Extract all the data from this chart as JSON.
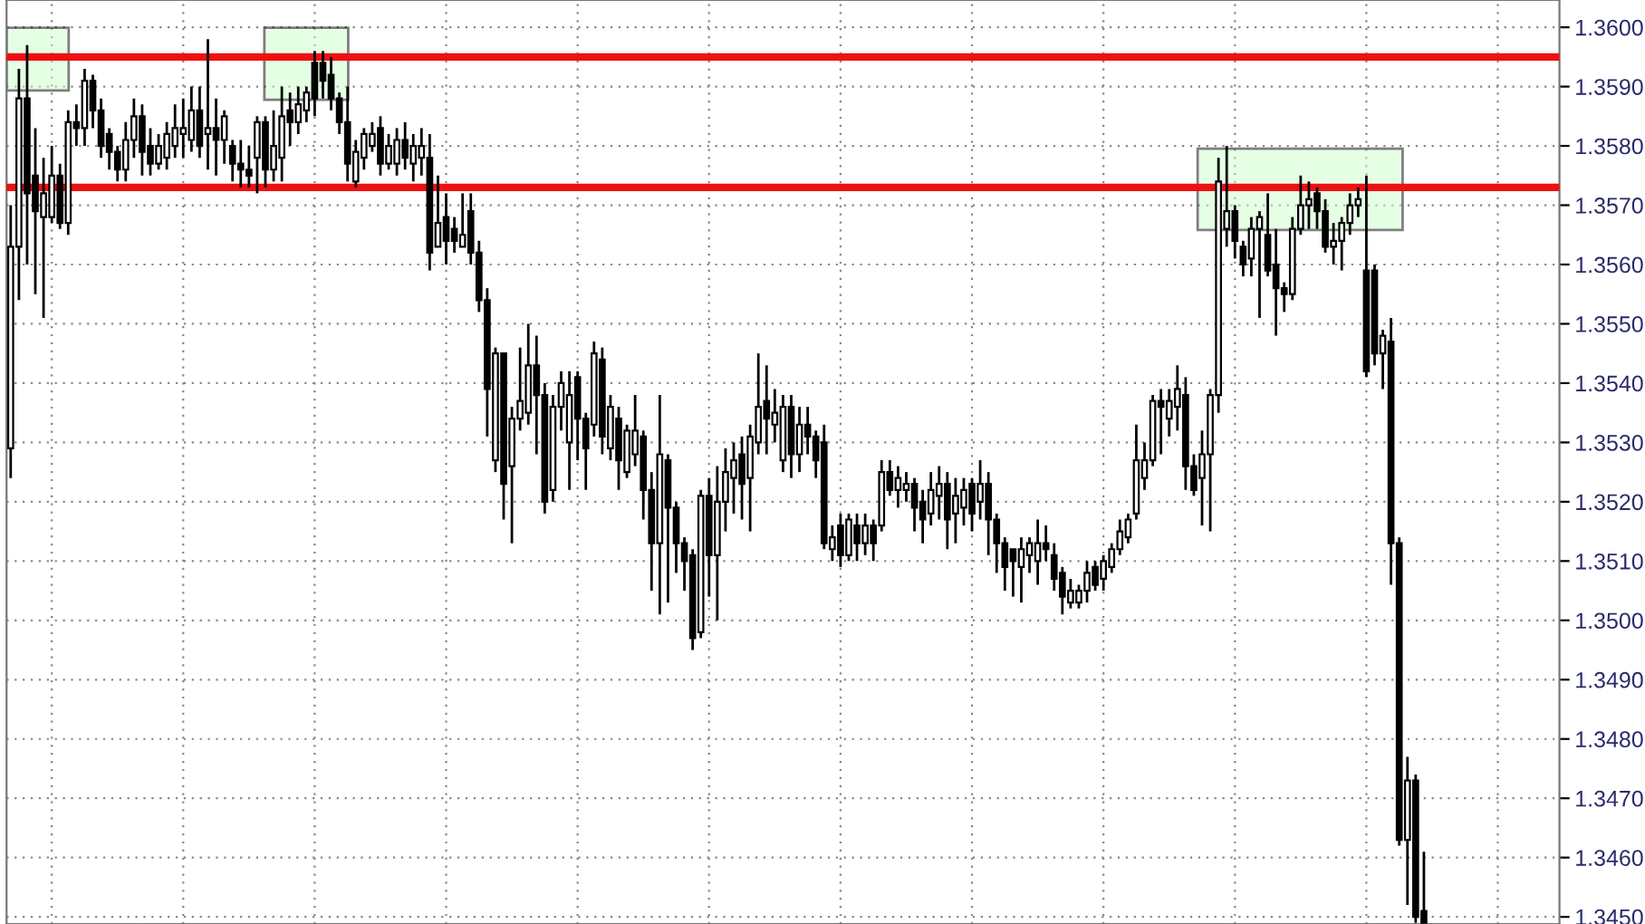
{
  "chart_data": {
    "type": "candlestick",
    "categories": [
      null,
      null,
      null,
      null,
      null,
      null,
      null,
      null,
      null,
      null,
      null,
      null,
      null,
      null,
      null,
      null,
      null,
      null,
      null,
      null,
      null,
      null,
      null,
      null,
      null,
      null,
      null,
      null,
      null,
      null,
      null,
      null,
      null,
      null,
      null,
      null,
      null,
      null,
      null,
      null,
      null,
      null,
      null,
      null,
      null,
      null,
      null,
      null,
      null,
      null,
      null,
      null,
      null,
      null,
      null,
      null,
      null,
      null,
      null,
      null,
      null,
      null,
      null,
      null,
      null,
      null,
      null,
      null,
      null,
      null,
      null,
      null,
      null,
      null,
      null,
      null,
      null,
      null,
      null,
      null,
      null,
      null,
      null,
      null,
      null,
      null,
      null,
      null,
      null,
      null,
      null,
      null,
      null,
      null,
      null,
      null,
      null,
      null,
      null,
      null,
      null,
      null,
      null,
      null,
      null,
      null,
      null,
      null,
      null,
      null,
      null,
      null,
      null,
      null,
      null,
      null,
      null,
      null,
      null,
      null,
      null,
      null,
      null,
      null,
      null,
      null,
      null,
      null,
      null,
      null,
      null,
      null,
      null,
      null,
      null,
      null,
      null,
      null,
      null,
      null,
      null,
      null,
      null,
      null,
      null,
      null,
      null,
      null,
      null,
      null,
      null,
      null,
      null,
      null,
      null,
      null,
      null,
      null,
      null,
      null,
      null,
      null,
      null,
      null,
      null,
      null,
      null,
      null,
      null,
      null,
      null,
      null,
      null,
      null,
      null,
      null,
      null,
      null,
      null,
      null,
      null,
      null,
      null,
      null,
      null,
      null,
      null,
      null,
      null
    ],
    "ohlc": [
      [
        1.3529,
        1.357,
        1.3524,
        1.3563
      ],
      [
        1.3563,
        1.3593,
        1.3554,
        1.3588
      ],
      [
        1.3588,
        1.3597,
        1.356,
        1.3572
      ],
      [
        1.3575,
        1.3583,
        1.3555,
        1.3569
      ],
      [
        1.3568,
        1.3578,
        1.3551,
        1.3572
      ],
      [
        1.3568,
        1.358,
        1.3567,
        1.3575
      ],
      [
        1.3575,
        1.3577,
        1.3566,
        1.3567
      ],
      [
        1.3567,
        1.3586,
        1.3565,
        1.3584
      ],
      [
        1.3584,
        1.3587,
        1.358,
        1.3583
      ],
      [
        1.3583,
        1.3593,
        1.358,
        1.3591
      ],
      [
        1.3591,
        1.3592,
        1.3583,
        1.3586
      ],
      [
        1.3586,
        1.3588,
        1.3578,
        1.358
      ],
      [
        1.3582,
        1.3583,
        1.3576,
        1.3579
      ],
      [
        1.3579,
        1.358,
        1.3574,
        1.3576
      ],
      [
        1.3576,
        1.3584,
        1.3574,
        1.3581
      ],
      [
        1.3581,
        1.3588,
        1.3578,
        1.3585
      ],
      [
        1.3585,
        1.3587,
        1.3575,
        1.3579
      ],
      [
        1.358,
        1.3583,
        1.3575,
        1.3577
      ],
      [
        1.3577,
        1.3582,
        1.3576,
        1.358
      ],
      [
        1.3578,
        1.3584,
        1.3576,
        1.3582
      ],
      [
        1.358,
        1.3587,
        1.3578,
        1.3583
      ],
      [
        1.3582,
        1.3588,
        1.3578,
        1.3583
      ],
      [
        1.3581,
        1.359,
        1.3579,
        1.3586
      ],
      [
        1.3586,
        1.359,
        1.3578,
        1.358
      ],
      [
        1.3582,
        1.3598,
        1.3576,
        1.3583
      ],
      [
        1.3583,
        1.3588,
        1.3575,
        1.3581
      ],
      [
        1.3581,
        1.3586,
        1.3577,
        1.3585
      ],
      [
        1.358,
        1.3581,
        1.3574,
        1.3577
      ],
      [
        1.3577,
        1.3581,
        1.3573,
        1.3576
      ],
      [
        1.3576,
        1.358,
        1.3573,
        1.3575
      ],
      [
        1.3578,
        1.3585,
        1.3572,
        1.3584
      ],
      [
        1.3584,
        1.3585,
        1.3573,
        1.3576
      ],
      [
        1.3576,
        1.3586,
        1.3574,
        1.358
      ],
      [
        1.3578,
        1.359,
        1.3574,
        1.3585
      ],
      [
        1.3586,
        1.3589,
        1.358,
        1.3584
      ],
      [
        1.3584,
        1.359,
        1.3582,
        1.3587
      ],
      [
        1.3586,
        1.359,
        1.3584,
        1.3589
      ],
      [
        1.3594,
        1.3596,
        1.3585,
        1.3588
      ],
      [
        1.3594,
        1.3596,
        1.3588,
        1.3591
      ],
      [
        1.3592,
        1.3595,
        1.3586,
        1.3588
      ],
      [
        1.3588,
        1.3589,
        1.3582,
        1.3584
      ],
      [
        1.3584,
        1.359,
        1.3574,
        1.3577
      ],
      [
        1.3574,
        1.3581,
        1.3573,
        1.3579
      ],
      [
        1.3578,
        1.3583,
        1.3576,
        1.3582
      ],
      [
        1.358,
        1.3584,
        1.3579,
        1.3582
      ],
      [
        1.3583,
        1.3585,
        1.3575,
        1.3577
      ],
      [
        1.3577,
        1.3582,
        1.3576,
        1.358
      ],
      [
        1.3577,
        1.3583,
        1.3575,
        1.3581
      ],
      [
        1.3581,
        1.3584,
        1.3576,
        1.3578
      ],
      [
        1.3577,
        1.3582,
        1.3574,
        1.358
      ],
      [
        1.3578,
        1.3583,
        1.3575,
        1.358
      ],
      [
        1.3578,
        1.3582,
        1.3559,
        1.3562
      ],
      [
        1.3563,
        1.3575,
        1.3563,
        1.3567
      ],
      [
        1.3568,
        1.3572,
        1.356,
        1.3564
      ],
      [
        1.3566,
        1.3568,
        1.3562,
        1.3564
      ],
      [
        1.3563,
        1.3572,
        1.3563,
        1.3565
      ],
      [
        1.3569,
        1.3572,
        1.356,
        1.3562
      ],
      [
        1.3562,
        1.3564,
        1.3552,
        1.3554
      ],
      [
        1.3554,
        1.3556,
        1.3531,
        1.3539
      ],
      [
        1.3527,
        1.3546,
        1.3525,
        1.3545
      ],
      [
        1.3545,
        1.3545,
        1.3517,
        1.3523
      ],
      [
        1.3526,
        1.3536,
        1.3513,
        1.3534
      ],
      [
        1.3534,
        1.3546,
        1.3532,
        1.3537
      ],
      [
        1.3535,
        1.355,
        1.3533,
        1.3543
      ],
      [
        1.3543,
        1.3548,
        1.3528,
        1.3538
      ],
      [
        1.3538,
        1.354,
        1.3518,
        1.352
      ],
      [
        1.3522,
        1.3538,
        1.352,
        1.3536
      ],
      [
        1.3536,
        1.3542,
        1.3532,
        1.354
      ],
      [
        1.353,
        1.3542,
        1.3522,
        1.3538
      ],
      [
        1.3541,
        1.3542,
        1.3527,
        1.3534
      ],
      [
        1.3534,
        1.3535,
        1.3522,
        1.3529
      ],
      [
        1.3533,
        1.3547,
        1.3531,
        1.3545
      ],
      [
        1.3544,
        1.3546,
        1.3528,
        1.3531
      ],
      [
        1.3529,
        1.3538,
        1.3527,
        1.3536
      ],
      [
        1.3534,
        1.3536,
        1.3522,
        1.3527
      ],
      [
        1.3525,
        1.3533,
        1.3524,
        1.3532
      ],
      [
        1.3528,
        1.3538,
        1.3526,
        1.3532
      ],
      [
        1.3531,
        1.3532,
        1.3517,
        1.3522
      ],
      [
        1.3522,
        1.3525,
        1.3505,
        1.3513
      ],
      [
        1.3513,
        1.3538,
        1.3501,
        1.3528
      ],
      [
        1.3527,
        1.3528,
        1.3503,
        1.3519
      ],
      [
        1.3519,
        1.352,
        1.3508,
        1.3513
      ],
      [
        1.3513,
        1.3514,
        1.3505,
        1.351
      ],
      [
        1.3511,
        1.3512,
        1.3495,
        1.3497
      ],
      [
        1.3498,
        1.3522,
        1.3497,
        1.3521
      ],
      [
        1.3521,
        1.3524,
        1.3504,
        1.3511
      ],
      [
        1.3511,
        1.3526,
        1.35,
        1.352
      ],
      [
        1.352,
        1.3529,
        1.3515,
        1.3525
      ],
      [
        1.3524,
        1.353,
        1.3518,
        1.3527
      ],
      [
        1.3528,
        1.3531,
        1.3517,
        1.3523
      ],
      [
        1.3524,
        1.3533,
        1.3515,
        1.3531
      ],
      [
        1.353,
        1.3545,
        1.3528,
        1.3536
      ],
      [
        1.3537,
        1.3543,
        1.3528,
        1.3534
      ],
      [
        1.3533,
        1.3539,
        1.353,
        1.3535
      ],
      [
        1.3527,
        1.3538,
        1.3525,
        1.3536
      ],
      [
        1.3536,
        1.3538,
        1.3524,
        1.3528
      ],
      [
        1.3528,
        1.3536,
        1.3525,
        1.3533
      ],
      [
        1.3533,
        1.3536,
        1.3528,
        1.3531
      ],
      [
        1.3531,
        1.3532,
        1.3524,
        1.3527
      ],
      [
        1.353,
        1.3533,
        1.3512,
        1.3513
      ],
      [
        1.3512,
        1.3516,
        1.351,
        1.3514
      ],
      [
        1.3516,
        1.3518,
        1.3509,
        1.3511
      ],
      [
        1.3511,
        1.3518,
        1.351,
        1.3517
      ],
      [
        1.3516,
        1.3518,
        1.351,
        1.3513
      ],
      [
        1.3513,
        1.3518,
        1.3511,
        1.3516
      ],
      [
        1.3516,
        1.3517,
        1.351,
        1.3513
      ],
      [
        1.3516,
        1.3527,
        1.3515,
        1.3525
      ],
      [
        1.3525,
        1.3527,
        1.3521,
        1.3522
      ],
      [
        1.3522,
        1.3526,
        1.3519,
        1.3524
      ],
      [
        1.3522,
        1.3525,
        1.352,
        1.3523
      ],
      [
        1.3523,
        1.3524,
        1.3515,
        1.3519
      ],
      [
        1.352,
        1.3522,
        1.3513,
        1.3517
      ],
      [
        1.3518,
        1.3525,
        1.3516,
        1.3522
      ],
      [
        1.3521,
        1.3526,
        1.3517,
        1.3523
      ],
      [
        1.3523,
        1.3525,
        1.3512,
        1.3517
      ],
      [
        1.3518,
        1.3524,
        1.3513,
        1.3521
      ],
      [
        1.3519,
        1.3524,
        1.3516,
        1.3522
      ],
      [
        1.3523,
        1.3524,
        1.3515,
        1.3518
      ],
      [
        1.352,
        1.3527,
        1.3517,
        1.3523
      ],
      [
        1.3523,
        1.3525,
        1.3511,
        1.3517
      ],
      [
        1.3517,
        1.3518,
        1.3508,
        1.3513
      ],
      [
        1.3513,
        1.3514,
        1.3505,
        1.3509
      ],
      [
        1.3512,
        1.3512,
        1.3504,
        1.351
      ],
      [
        1.3509,
        1.3514,
        1.3503,
        1.3512
      ],
      [
        1.3511,
        1.3514,
        1.3508,
        1.3513
      ],
      [
        1.351,
        1.3517,
        1.3506,
        1.3513
      ],
      [
        1.3513,
        1.3516,
        1.351,
        1.3512
      ],
      [
        1.3511,
        1.3513,
        1.3505,
        1.3507
      ],
      [
        1.3508,
        1.3509,
        1.3501,
        1.3504
      ],
      [
        1.3503,
        1.3507,
        1.3502,
        1.3505
      ],
      [
        1.3503,
        1.3506,
        1.3502,
        1.3505
      ],
      [
        1.3505,
        1.351,
        1.3503,
        1.3508
      ],
      [
        1.3509,
        1.351,
        1.3505,
        1.3506
      ],
      [
        1.3507,
        1.3511,
        1.3505,
        1.351
      ],
      [
        1.3509,
        1.3513,
        1.3508,
        1.3512
      ],
      [
        1.3512,
        1.3517,
        1.3511,
        1.3515
      ],
      [
        1.3514,
        1.3518,
        1.3513,
        1.3517
      ],
      [
        1.3518,
        1.3533,
        1.3517,
        1.3527
      ],
      [
        1.3524,
        1.353,
        1.3522,
        1.3527
      ],
      [
        1.3527,
        1.3538,
        1.3526,
        1.3537
      ],
      [
        1.3537,
        1.3539,
        1.3528,
        1.3536
      ],
      [
        1.3534,
        1.3539,
        1.3531,
        1.3537
      ],
      [
        1.3536,
        1.3543,
        1.3532,
        1.3539
      ],
      [
        1.3538,
        1.3541,
        1.3522,
        1.3526
      ],
      [
        1.3526,
        1.3528,
        1.3521,
        1.3522
      ],
      [
        1.3524,
        1.3532,
        1.3516,
        1.3528
      ],
      [
        1.3528,
        1.3539,
        1.3515,
        1.3538
      ],
      [
        1.3538,
        1.3578,
        1.3535,
        1.3574
      ],
      [
        1.3566,
        1.358,
        1.3563,
        1.3569
      ],
      [
        1.3569,
        1.357,
        1.3561,
        1.3564
      ],
      [
        1.3563,
        1.3564,
        1.3558,
        1.356
      ],
      [
        1.3561,
        1.3568,
        1.3558,
        1.3566
      ],
      [
        1.3566,
        1.3569,
        1.3551,
        1.3568
      ],
      [
        1.3565,
        1.3572,
        1.3558,
        1.3559
      ],
      [
        1.356,
        1.3566,
        1.3548,
        1.3556
      ],
      [
        1.3556,
        1.3557,
        1.3552,
        1.3555
      ],
      [
        1.3555,
        1.3568,
        1.3554,
        1.3566
      ],
      [
        1.3566,
        1.3575,
        1.3565,
        1.357
      ],
      [
        1.357,
        1.3574,
        1.3566,
        1.3571
      ],
      [
        1.3572,
        1.3573,
        1.3566,
        1.3569
      ],
      [
        1.3569,
        1.3571,
        1.3562,
        1.3563
      ],
      [
        1.3563,
        1.3567,
        1.356,
        1.3564
      ],
      [
        1.3564,
        1.3568,
        1.3559,
        1.3567
      ],
      [
        1.3567,
        1.3572,
        1.3565,
        1.357
      ],
      [
        1.357,
        1.3573,
        1.3568,
        1.3571
      ],
      [
        1.3559,
        1.3575,
        1.3541,
        1.3542
      ],
      [
        1.3559,
        1.356,
        1.3543,
        1.3545
      ],
      [
        1.3545,
        1.3549,
        1.3539,
        1.3548
      ],
      [
        1.3547,
        1.3551,
        1.3506,
        1.3513
      ],
      [
        1.3513,
        1.3514,
        1.3462,
        1.3463
      ],
      [
        1.3463,
        1.3477,
        1.3452,
        1.3473
      ],
      [
        1.3473,
        1.3474,
        1.3449,
        1.345
      ],
      [
        1.3451,
        1.3461,
        1.3449,
        1.3449
      ],
      null,
      null,
      null,
      null,
      null,
      null,
      null,
      null,
      null,
      null,
      null,
      null,
      null,
      null,
      null,
      null
    ],
    "color": "#000000",
    "ylim": [
      1.34488,
      1.36046
    ],
    "yticks": [
      {
        "value": 1.345,
        "label": "1.3450"
      },
      {
        "value": 1.346,
        "label": "1.3460"
      },
      {
        "value": 1.347,
        "label": "1.3470"
      },
      {
        "value": 1.348,
        "label": "1.3480"
      },
      {
        "value": 1.349,
        "label": "1.3490"
      },
      {
        "value": 1.35,
        "label": "1.3500"
      },
      {
        "value": 1.351,
        "label": "1.3510"
      },
      {
        "value": 1.352,
        "label": "1.3520"
      },
      {
        "value": 1.353,
        "label": "1.3530"
      },
      {
        "value": 1.354,
        "label": "1.3540"
      },
      {
        "value": 1.355,
        "label": "1.3550"
      },
      {
        "value": 1.356,
        "label": "1.3560"
      },
      {
        "value": 1.357,
        "label": "1.3570"
      },
      {
        "value": 1.358,
        "label": "1.3580"
      },
      {
        "value": 1.359,
        "label": "1.3590"
      },
      {
        "value": 1.36,
        "label": "1.3600"
      }
    ],
    "ref_lines": [
      {
        "axis": "y",
        "value": 1.3595,
        "color": "#ee1111"
      },
      {
        "axis": "y",
        "value": 1.3573,
        "color": "#ee1111"
      }
    ],
    "grid": true,
    "tick_labels": "y"
  }
}
